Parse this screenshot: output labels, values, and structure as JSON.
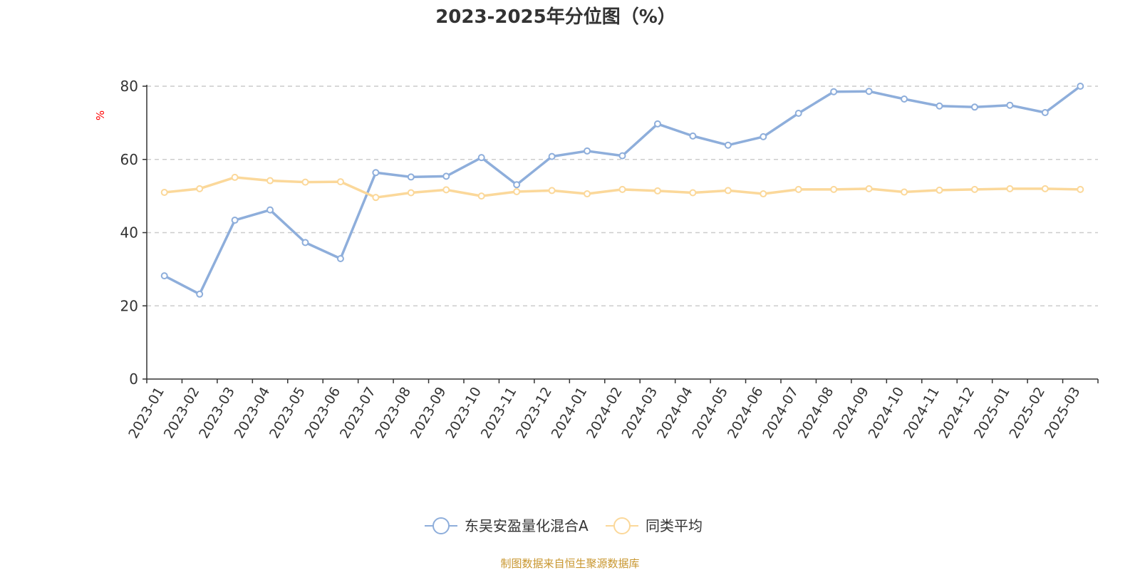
{
  "chart_data": {
    "type": "line",
    "title": "2023-2025年分位图（%）",
    "ylabel": "%",
    "xlabel": "",
    "ylim": [
      0,
      80
    ],
    "yticks": [
      0,
      20,
      40,
      60,
      80
    ],
    "grid": true,
    "legend_position": "bottom-center",
    "categories": [
      "2023-01",
      "2023-02",
      "2023-03",
      "2023-04",
      "2023-05",
      "2023-06",
      "2023-07",
      "2023-08",
      "2023-09",
      "2023-10",
      "2023-11",
      "2023-12",
      "2024-01",
      "2024-02",
      "2024-03",
      "2024-04",
      "2024-05",
      "2024-06",
      "2024-07",
      "2024-08",
      "2024-09",
      "2024-10",
      "2024-11",
      "2024-12",
      "2025-01",
      "2025-02",
      "2025-03"
    ],
    "series": [
      {
        "name": "东吴安盈量化混合A",
        "color": "#8eaedb",
        "values": [
          28.2,
          23.2,
          43.4,
          46.2,
          37.3,
          32.9,
          56.4,
          55.2,
          55.4,
          60.5,
          53.1,
          60.8,
          62.3,
          61.0,
          69.7,
          66.4,
          63.9,
          66.2,
          72.6,
          78.5,
          78.6,
          76.5,
          74.6,
          74.3,
          74.8,
          72.8,
          80.0
        ]
      },
      {
        "name": "同类平均",
        "color": "#fbd89a",
        "values": [
          51.0,
          52.0,
          55.1,
          54.2,
          53.8,
          53.9,
          49.6,
          50.9,
          51.7,
          50.0,
          51.2,
          51.5,
          50.6,
          51.8,
          51.4,
          50.9,
          51.5,
          50.6,
          51.8,
          51.8,
          52.0,
          51.1,
          51.6,
          51.8,
          52.0,
          52.0,
          51.8
        ]
      }
    ]
  },
  "source_text": "制图数据来自恒生聚源数据库",
  "colors": {
    "axis": "#333333",
    "grid": "#cccccc",
    "unit_label": "#ff0000",
    "source": "#c8962e"
  }
}
